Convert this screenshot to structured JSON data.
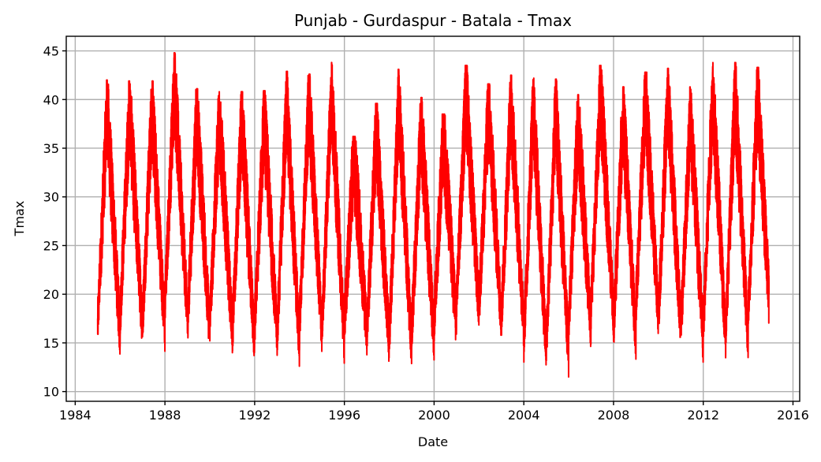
{
  "chart_data": {
    "type": "line",
    "title": "Punjab - Gurdaspur - Batala - Tmax",
    "xlabel": "Date",
    "ylabel": "Tmax",
    "xlim": [
      1983.6,
      2016.3
    ],
    "ylim": [
      9.0,
      46.5
    ],
    "x_ticks": [
      1984,
      1988,
      1992,
      1996,
      2000,
      2004,
      2008,
      2012,
      2016
    ],
    "y_ticks": [
      10,
      15,
      20,
      25,
      30,
      35,
      40,
      45
    ],
    "grid": true,
    "line_color": "#ff0000",
    "x_start": 1985.0,
    "x_end": 2014.95,
    "yearly_peaks": [
      {
        "year": 1985,
        "max": 42.0,
        "min": 12.8
      },
      {
        "year": 1986,
        "max": 41.9,
        "min": 13.7
      },
      {
        "year": 1987,
        "max": 41.9,
        "min": 13.4
      },
      {
        "year": 1988,
        "max": 44.8,
        "min": 15.0
      },
      {
        "year": 1989,
        "max": 41.1,
        "min": 13.1
      },
      {
        "year": 1990,
        "max": 40.8,
        "min": 13.6
      },
      {
        "year": 1991,
        "max": 40.8,
        "min": 11.8
      },
      {
        "year": 1992,
        "max": 40.9,
        "min": 13.0
      },
      {
        "year": 1993,
        "max": 42.9,
        "min": 11.6
      },
      {
        "year": 1994,
        "max": 42.6,
        "min": 13.2
      },
      {
        "year": 1995,
        "max": 44.0,
        "min": 12.1
      },
      {
        "year": 1996,
        "max": 36.2,
        "min": 13.8
      },
      {
        "year": 1997,
        "max": 39.6,
        "min": 12.2
      },
      {
        "year": 1998,
        "max": 43.1,
        "min": 11.4
      },
      {
        "year": 1999,
        "max": 40.2,
        "min": 12.4
      },
      {
        "year": 2000,
        "max": 38.5,
        "min": 13.9
      },
      {
        "year": 2001,
        "max": 43.5,
        "min": 15.6
      },
      {
        "year": 2002,
        "max": 41.6,
        "min": 14.7
      },
      {
        "year": 2003,
        "max": 42.5,
        "min": 13.6
      },
      {
        "year": 2004,
        "max": 42.2,
        "min": 11.0
      },
      {
        "year": 2005,
        "max": 42.1,
        "min": 10.7
      },
      {
        "year": 2006,
        "max": 40.5,
        "min": 13.2
      },
      {
        "year": 2007,
        "max": 43.5,
        "min": 15.0
      },
      {
        "year": 2008,
        "max": 41.3,
        "min": 12.6
      },
      {
        "year": 2009,
        "max": 42.8,
        "min": 15.3
      },
      {
        "year": 2010,
        "max": 43.2,
        "min": 13.8
      },
      {
        "year": 2011,
        "max": 41.3,
        "min": 12.2
      },
      {
        "year": 2012,
        "max": 43.8,
        "min": 12.6
      },
      {
        "year": 2013,
        "max": 43.8,
        "min": 12.2
      },
      {
        "year": 2014,
        "max": 43.3,
        "min": 14.0
      }
    ]
  }
}
